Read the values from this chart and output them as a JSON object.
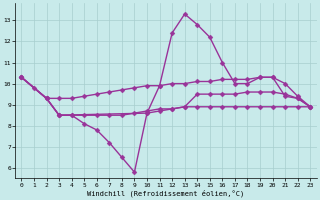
{
  "xlabel": "Windchill (Refroidissement éolien,°C)",
  "xlim": [
    -0.5,
    23.5
  ],
  "ylim": [
    5.5,
    13.8
  ],
  "yticks": [
    6,
    7,
    8,
    9,
    10,
    11,
    12,
    13
  ],
  "xticks": [
    0,
    1,
    2,
    3,
    4,
    5,
    6,
    7,
    8,
    9,
    10,
    11,
    12,
    13,
    14,
    15,
    16,
    17,
    18,
    19,
    20,
    21,
    22,
    23
  ],
  "bg_color": "#c8eaea",
  "grid_color": "#a8cece",
  "line_color": "#993399",
  "line1_x": [
    0,
    1,
    2,
    3,
    4,
    5,
    6,
    7,
    8,
    9,
    10,
    11,
    12,
    13,
    14,
    15,
    16,
    17,
    18,
    19,
    20,
    21,
    22,
    23
  ],
  "line1_y": [
    10.3,
    9.8,
    9.3,
    8.5,
    8.5,
    8.1,
    7.8,
    7.2,
    6.5,
    5.8,
    8.6,
    9.9,
    12.4,
    13.3,
    12.8,
    12.2,
    11.0,
    10.0,
    10.0,
    10.3,
    10.3,
    9.4,
    9.3,
    8.9
  ],
  "line2_x": [
    0,
    2,
    3,
    4,
    5,
    6,
    7,
    8,
    9,
    10,
    11,
    12,
    13,
    14,
    15,
    16,
    17,
    18,
    19,
    20,
    21,
    22,
    23
  ],
  "line2_y": [
    10.3,
    9.3,
    9.3,
    9.3,
    9.4,
    9.5,
    9.6,
    9.7,
    9.8,
    9.9,
    9.9,
    10.0,
    10.0,
    10.1,
    10.1,
    10.2,
    10.2,
    10.2,
    10.3,
    10.3,
    10.0,
    9.4,
    8.9
  ],
  "line3_x": [
    0,
    2,
    3,
    4,
    5,
    6,
    7,
    8,
    9,
    10,
    11,
    12,
    13,
    14,
    15,
    16,
    17,
    18,
    19,
    20,
    21,
    22,
    23
  ],
  "line3_y": [
    10.3,
    9.3,
    8.5,
    8.5,
    8.5,
    8.5,
    8.5,
    8.5,
    8.6,
    8.7,
    8.8,
    8.8,
    8.9,
    9.5,
    9.5,
    9.5,
    9.5,
    9.6,
    9.6,
    9.6,
    9.5,
    9.3,
    8.9
  ],
  "line4_x": [
    0,
    2,
    3,
    10,
    11,
    12,
    13,
    14,
    15,
    16,
    17,
    18,
    19,
    20,
    21,
    22,
    23
  ],
  "line4_y": [
    10.3,
    9.3,
    8.5,
    8.6,
    8.7,
    8.8,
    8.9,
    8.9,
    8.9,
    8.9,
    8.9,
    8.9,
    8.9,
    8.9,
    8.9,
    8.9,
    8.9
  ],
  "linewidth": 1.0,
  "markersize": 2.5
}
